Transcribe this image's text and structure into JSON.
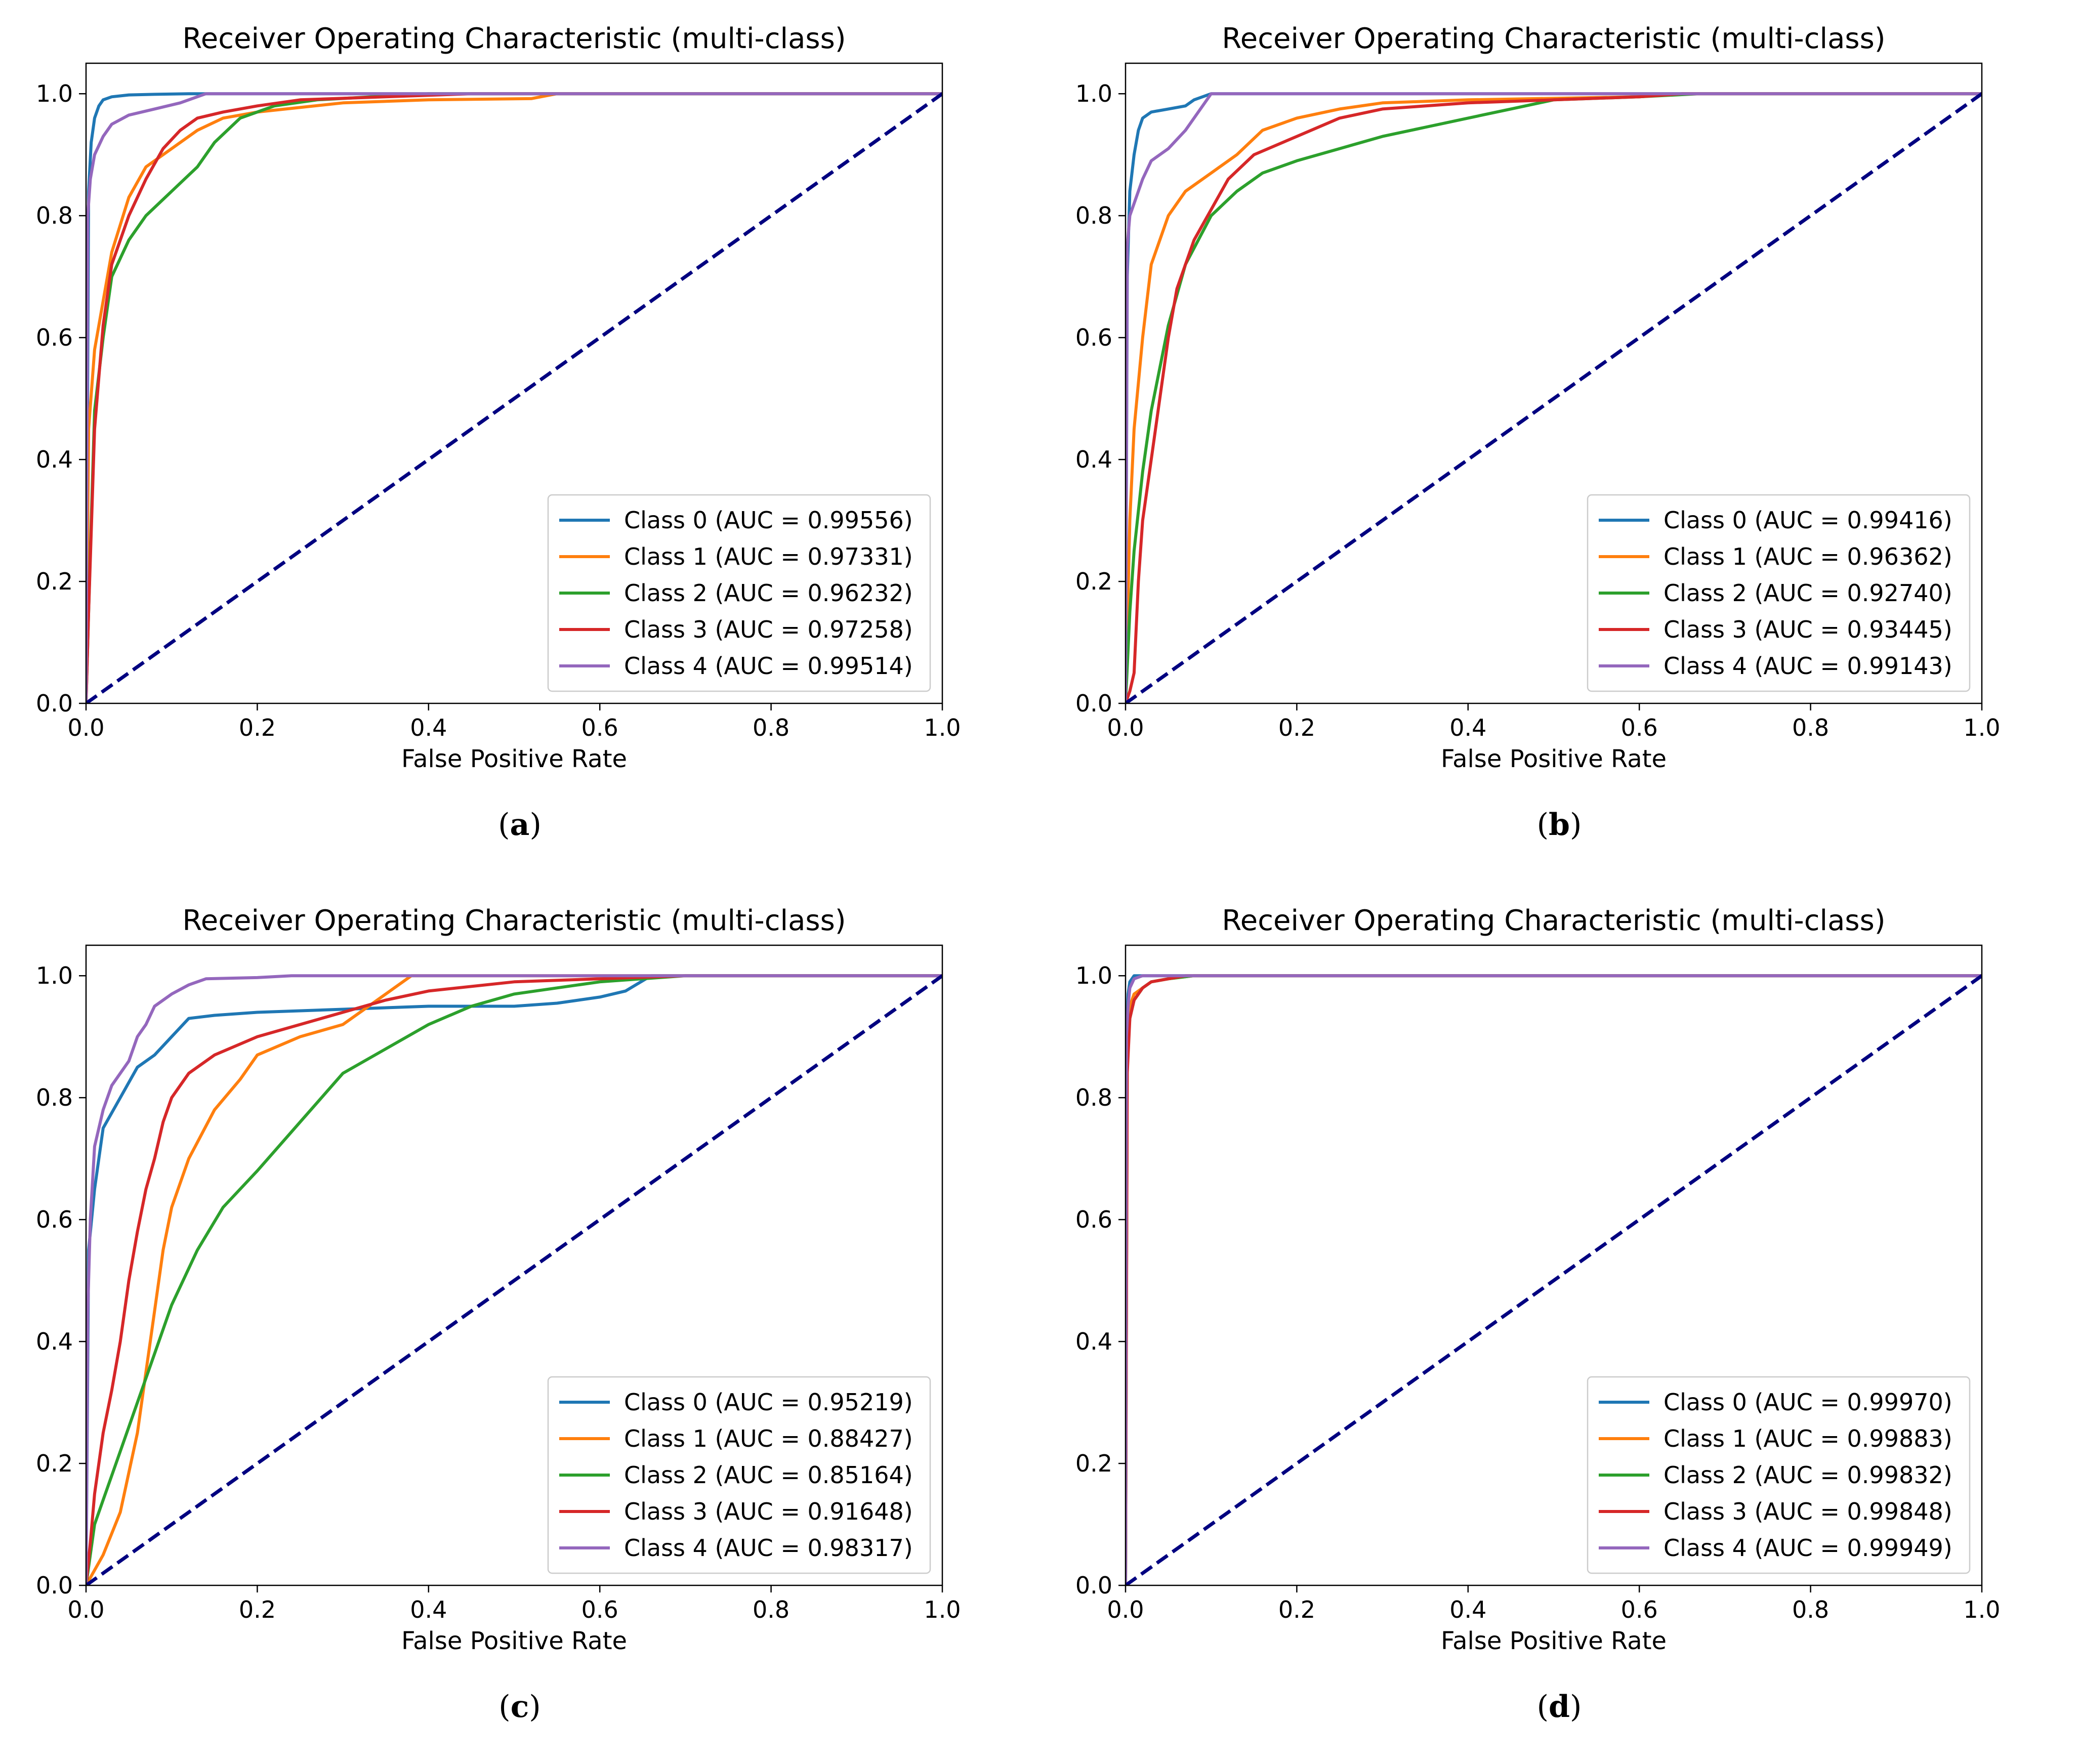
{
  "chart_data": [
    {
      "panel": "a",
      "caption_letter": "a",
      "type": "line",
      "title": "Receiver Operating Characteristic (multi-class)",
      "xlabel": "False Positive Rate",
      "ylabel": "",
      "xlim": [
        0,
        1
      ],
      "ylim": [
        0,
        1.05
      ],
      "xticks": [
        "0.0",
        "0.2",
        "0.4",
        "0.6",
        "0.8",
        "1.0"
      ],
      "yticks": [
        "0.0",
        "0.2",
        "0.4",
        "0.6",
        "0.8",
        "1.0"
      ],
      "legend_position": "lower-right",
      "series": [
        {
          "name": "Class 0",
          "label": "Class 0 (AUC = 0.99556)",
          "color": "#1f77b4",
          "x": [
            0,
            0.003,
            0.006,
            0.01,
            0.015,
            0.02,
            0.03,
            0.05,
            0.08,
            0.12,
            1.0
          ],
          "y": [
            0,
            0.84,
            0.92,
            0.96,
            0.98,
            0.99,
            0.995,
            0.998,
            0.999,
            1.0,
            1.0
          ]
        },
        {
          "name": "Class 1",
          "label": "Class 1 (AUC = 0.97331)",
          "color": "#ff7f0e",
          "x": [
            0,
            0.003,
            0.01,
            0.02,
            0.03,
            0.05,
            0.07,
            0.1,
            0.13,
            0.16,
            0.2,
            0.3,
            0.4,
            0.52,
            0.55,
            1.0
          ],
          "y": [
            0,
            0.45,
            0.58,
            0.66,
            0.74,
            0.83,
            0.88,
            0.91,
            0.94,
            0.96,
            0.97,
            0.985,
            0.99,
            0.992,
            1.0,
            1.0
          ]
        },
        {
          "name": "Class 2",
          "label": "Class 2 (AUC = 0.96232)",
          "color": "#2ca02c",
          "x": [
            0,
            0.005,
            0.01,
            0.02,
            0.03,
            0.05,
            0.07,
            0.1,
            0.13,
            0.15,
            0.18,
            0.22,
            0.27,
            0.4,
            1.0
          ],
          "y": [
            0,
            0.25,
            0.48,
            0.6,
            0.7,
            0.76,
            0.8,
            0.84,
            0.88,
            0.92,
            0.96,
            0.98,
            0.99,
            1.0,
            1.0
          ]
        },
        {
          "name": "Class 3",
          "label": "Class 3 (AUC = 0.97258)",
          "color": "#d62728",
          "x": [
            0,
            0.003,
            0.01,
            0.02,
            0.03,
            0.05,
            0.07,
            0.09,
            0.11,
            0.13,
            0.16,
            0.2,
            0.25,
            0.35,
            0.45,
            1.0
          ],
          "y": [
            0,
            0.15,
            0.45,
            0.62,
            0.72,
            0.8,
            0.86,
            0.91,
            0.94,
            0.96,
            0.97,
            0.98,
            0.99,
            0.995,
            1.0,
            1.0
          ]
        },
        {
          "name": "Class 4",
          "label": "Class 4 (AUC = 0.99514)",
          "color": "#9467bd",
          "x": [
            0,
            0.002,
            0.005,
            0.01,
            0.02,
            0.03,
            0.05,
            0.08,
            0.11,
            0.14,
            0.2,
            1.0
          ],
          "y": [
            0,
            0.8,
            0.86,
            0.9,
            0.93,
            0.95,
            0.965,
            0.975,
            0.985,
            1.0,
            1.0,
            1.0
          ]
        }
      ]
    },
    {
      "panel": "b",
      "caption_letter": "b",
      "type": "line",
      "title": "Receiver Operating Characteristic (multi-class)",
      "xlabel": "False Positive Rate",
      "ylabel": "",
      "xlim": [
        0,
        1
      ],
      "ylim": [
        0,
        1.05
      ],
      "xticks": [
        "0.0",
        "0.2",
        "0.4",
        "0.6",
        "0.8",
        "1.0"
      ],
      "yticks": [
        "0.0",
        "0.2",
        "0.4",
        "0.6",
        "0.8",
        "1.0"
      ],
      "legend_position": "lower-right",
      "series": [
        {
          "name": "Class 0",
          "label": "Class 0 (AUC = 0.99416)",
          "color": "#1f77b4",
          "x": [
            0,
            0.002,
            0.005,
            0.01,
            0.015,
            0.02,
            0.03,
            0.05,
            0.07,
            0.08,
            0.1,
            1.0
          ],
          "y": [
            0,
            0.7,
            0.84,
            0.9,
            0.94,
            0.96,
            0.97,
            0.975,
            0.98,
            0.99,
            1.0,
            1.0
          ]
        },
        {
          "name": "Class 1",
          "label": "Class 1 (AUC = 0.96362)",
          "color": "#ff7f0e",
          "x": [
            0,
            0.005,
            0.01,
            0.02,
            0.03,
            0.05,
            0.07,
            0.1,
            0.13,
            0.16,
            0.2,
            0.25,
            0.3,
            0.4,
            0.6,
            0.65,
            1.0
          ],
          "y": [
            0,
            0.3,
            0.45,
            0.6,
            0.72,
            0.8,
            0.84,
            0.87,
            0.9,
            0.94,
            0.96,
            0.975,
            0.985,
            0.99,
            0.995,
            1.0,
            1.0
          ]
        },
        {
          "name": "Class 2",
          "label": "Class 2 (AUC = 0.92740)",
          "color": "#2ca02c",
          "x": [
            0,
            0.005,
            0.01,
            0.02,
            0.03,
            0.05,
            0.07,
            0.1,
            0.13,
            0.16,
            0.2,
            0.25,
            0.3,
            0.35,
            0.4,
            0.45,
            0.5,
            0.6,
            0.67,
            1.0
          ],
          "y": [
            0,
            0.15,
            0.25,
            0.38,
            0.48,
            0.62,
            0.72,
            0.8,
            0.84,
            0.87,
            0.89,
            0.91,
            0.93,
            0.945,
            0.96,
            0.975,
            0.99,
            0.995,
            1.0,
            1.0
          ]
        },
        {
          "name": "Class 3",
          "label": "Class 3 (AUC = 0.93445)",
          "color": "#d62728",
          "x": [
            0,
            0.005,
            0.01,
            0.015,
            0.02,
            0.03,
            0.04,
            0.05,
            0.06,
            0.08,
            0.1,
            0.12,
            0.15,
            0.2,
            0.25,
            0.3,
            0.4,
            0.5,
            0.6,
            0.65,
            1.0
          ],
          "y": [
            0,
            0.02,
            0.05,
            0.2,
            0.3,
            0.4,
            0.5,
            0.6,
            0.68,
            0.76,
            0.81,
            0.86,
            0.9,
            0.93,
            0.96,
            0.975,
            0.985,
            0.99,
            0.995,
            1.0,
            1.0
          ]
        },
        {
          "name": "Class 4",
          "label": "Class 4 (AUC = 0.99143)",
          "color": "#9467bd",
          "x": [
            0,
            0.002,
            0.005,
            0.01,
            0.02,
            0.03,
            0.05,
            0.07,
            0.09,
            0.1,
            1.0
          ],
          "y": [
            0,
            0.75,
            0.8,
            0.82,
            0.86,
            0.89,
            0.91,
            0.94,
            0.98,
            1.0,
            1.0
          ]
        }
      ]
    },
    {
      "panel": "c",
      "caption_letter": "c",
      "type": "line",
      "title": "Receiver Operating Characteristic (multi-class)",
      "xlabel": "False Positive Rate",
      "ylabel": "",
      "xlim": [
        0,
        1
      ],
      "ylim": [
        0,
        1.05
      ],
      "xticks": [
        "0.0",
        "0.2",
        "0.4",
        "0.6",
        "0.8",
        "1.0"
      ],
      "yticks": [
        "0.0",
        "0.2",
        "0.4",
        "0.6",
        "0.8",
        "1.0"
      ],
      "legend_position": "lower-right",
      "series": [
        {
          "name": "Class 0",
          "label": "Class 0 (AUC = 0.95219)",
          "color": "#1f77b4",
          "x": [
            0,
            0.003,
            0.01,
            0.02,
            0.04,
            0.06,
            0.08,
            0.1,
            0.12,
            0.15,
            0.2,
            0.3,
            0.4,
            0.5,
            0.55,
            0.6,
            0.63,
            0.66,
            1.0
          ],
          "y": [
            0,
            0.55,
            0.65,
            0.75,
            0.8,
            0.85,
            0.87,
            0.9,
            0.93,
            0.935,
            0.94,
            0.945,
            0.95,
            0.95,
            0.955,
            0.965,
            0.975,
            1.0,
            1.0
          ]
        },
        {
          "name": "Class 1",
          "label": "Class 1 (AUC = 0.88427)",
          "color": "#ff7f0e",
          "x": [
            0,
            0.02,
            0.04,
            0.06,
            0.07,
            0.08,
            0.09,
            0.1,
            0.12,
            0.15,
            0.18,
            0.2,
            0.25,
            0.3,
            0.33,
            0.36,
            0.38,
            1.0
          ],
          "y": [
            0,
            0.05,
            0.12,
            0.25,
            0.35,
            0.45,
            0.55,
            0.62,
            0.7,
            0.78,
            0.83,
            0.87,
            0.9,
            0.92,
            0.95,
            0.98,
            1.0,
            1.0
          ]
        },
        {
          "name": "Class 2",
          "label": "Class 2 (AUC = 0.85164)",
          "color": "#2ca02c",
          "x": [
            0,
            0.01,
            0.02,
            0.04,
            0.06,
            0.08,
            0.1,
            0.13,
            0.16,
            0.2,
            0.25,
            0.3,
            0.35,
            0.4,
            0.45,
            0.5,
            0.55,
            0.6,
            0.7,
            1.0
          ],
          "y": [
            0,
            0.1,
            0.14,
            0.22,
            0.3,
            0.38,
            0.46,
            0.55,
            0.62,
            0.68,
            0.76,
            0.84,
            0.88,
            0.92,
            0.95,
            0.97,
            0.98,
            0.99,
            1.0,
            1.0
          ]
        },
        {
          "name": "Class 3",
          "label": "Class 3 (AUC = 0.91648)",
          "color": "#d62728",
          "x": [
            0,
            0.005,
            0.01,
            0.02,
            0.03,
            0.04,
            0.05,
            0.06,
            0.07,
            0.08,
            0.09,
            0.1,
            0.12,
            0.15,
            0.2,
            0.25,
            0.3,
            0.35,
            0.4,
            0.5,
            0.6,
            0.7,
            1.0
          ],
          "y": [
            0,
            0.07,
            0.15,
            0.25,
            0.32,
            0.4,
            0.5,
            0.58,
            0.65,
            0.7,
            0.76,
            0.8,
            0.84,
            0.87,
            0.9,
            0.92,
            0.94,
            0.96,
            0.975,
            0.99,
            0.995,
            1.0,
            1.0
          ]
        },
        {
          "name": "Class 4",
          "label": "Class 4 (AUC = 0.98317)",
          "color": "#9467bd",
          "x": [
            0,
            0.002,
            0.005,
            0.01,
            0.02,
            0.03,
            0.04,
            0.05,
            0.06,
            0.07,
            0.08,
            0.1,
            0.12,
            0.14,
            0.2,
            0.24,
            1.0
          ],
          "y": [
            0,
            0.45,
            0.6,
            0.72,
            0.78,
            0.82,
            0.84,
            0.86,
            0.9,
            0.92,
            0.95,
            0.97,
            0.985,
            0.995,
            0.997,
            1.0,
            1.0
          ]
        }
      ]
    },
    {
      "panel": "d",
      "caption_letter": "d",
      "type": "line",
      "title": "Receiver Operating Characteristic (multi-class)",
      "xlabel": "False Positive Rate",
      "ylabel": "",
      "xlim": [
        0,
        1
      ],
      "ylim": [
        0,
        1.05
      ],
      "xticks": [
        "0.0",
        "0.2",
        "0.4",
        "0.6",
        "0.8",
        "1.0"
      ],
      "yticks": [
        "0.0",
        "0.2",
        "0.4",
        "0.6",
        "0.8",
        "1.0"
      ],
      "legend_position": "lower-right",
      "series": [
        {
          "name": "Class 0",
          "label": "Class 0 (AUC = 0.99970)",
          "color": "#1f77b4",
          "x": [
            0,
            0.001,
            0.003,
            0.005,
            0.01,
            1.0
          ],
          "y": [
            0,
            0.9,
            0.97,
            0.99,
            1.0,
            1.0
          ]
        },
        {
          "name": "Class 1",
          "label": "Class 1 (AUC = 0.99883)",
          "color": "#ff7f0e",
          "x": [
            0,
            0.002,
            0.005,
            0.01,
            0.02,
            0.03,
            0.05,
            0.08,
            1.0
          ],
          "y": [
            0,
            0.9,
            0.95,
            0.97,
            0.98,
            0.99,
            0.995,
            1.0,
            1.0
          ]
        },
        {
          "name": "Class 2",
          "label": "Class 2 (AUC = 0.99832)",
          "color": "#2ca02c",
          "x": [
            0,
            0.002,
            0.005,
            0.01,
            0.02,
            0.03,
            0.05,
            0.08,
            1.0
          ],
          "y": [
            0,
            0.88,
            0.93,
            0.96,
            0.98,
            0.99,
            0.995,
            1.0,
            1.0
          ]
        },
        {
          "name": "Class 3",
          "label": "Class 3 (AUC = 0.99848)",
          "color": "#d62728",
          "x": [
            0,
            0.002,
            0.005,
            0.01,
            0.02,
            0.03,
            0.05,
            0.07,
            1.0
          ],
          "y": [
            0,
            0.84,
            0.93,
            0.96,
            0.98,
            0.99,
            0.995,
            1.0,
            1.0
          ]
        },
        {
          "name": "Class 4",
          "label": "Class 4 (AUC = 0.99949)",
          "color": "#9467bd",
          "x": [
            0,
            0.001,
            0.003,
            0.005,
            0.01,
            0.02,
            1.0
          ],
          "y": [
            0,
            0.9,
            0.95,
            0.98,
            0.995,
            1.0,
            1.0
          ]
        }
      ]
    }
  ]
}
